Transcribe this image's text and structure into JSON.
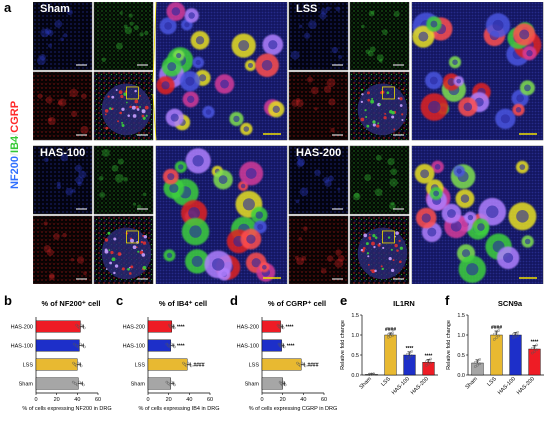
{
  "panel_a": {
    "letter": "a",
    "stain_label_parts": [
      {
        "text": "NF200",
        "color": "#2f6fff"
      },
      {
        "text": "/",
        "color": "#e8e8e8"
      },
      {
        "text": "IB4",
        "color": "#33c833"
      },
      {
        "text": "/",
        "color": "#e8e8e8"
      },
      {
        "text": "CGRP",
        "color": "#ff2a2a"
      }
    ],
    "groups": [
      {
        "title": "Sham"
      },
      {
        "title": "LSS"
      },
      {
        "title": "HAS-100"
      },
      {
        "title": "HAS-200"
      }
    ]
  },
  "chart_data": [
    {
      "letter": "b",
      "type": "bar",
      "orientation": "horizontal",
      "title": "% of NF200⁺ cell",
      "xlabel": "% of cells expressing NF200 in DRG",
      "categories": [
        "HAS-200",
        "HAS-100",
        "LSS",
        "Sham"
      ],
      "values": [
        43,
        42,
        40,
        41
      ],
      "errors": [
        3,
        4,
        3,
        4
      ],
      "colors": [
        "#ee1c25",
        "#1d2fc9",
        "#e8b931",
        "#a6a6a6"
      ],
      "significance": [
        "",
        "",
        "",
        ""
      ],
      "xlim": [
        0,
        60
      ],
      "xticks": [
        "0",
        "20",
        "40",
        "60"
      ]
    },
    {
      "letter": "c",
      "type": "bar",
      "orientation": "horizontal",
      "title": "% of IB4⁺ cell",
      "xlabel": "% of cells expressing IB4 in DRG",
      "categories": [
        "HAS-200",
        "HAS-100",
        "LSS",
        "Sham"
      ],
      "values": [
        23,
        22,
        38,
        22
      ],
      "errors": [
        2,
        3,
        3,
        3
      ],
      "colors": [
        "#ee1c25",
        "#1d2fc9",
        "#e8b931",
        "#a6a6a6"
      ],
      "significance": [
        "****",
        "****",
        "####",
        ""
      ],
      "xlim": [
        0,
        60
      ],
      "xticks": [
        "0",
        "20",
        "40",
        "60"
      ]
    },
    {
      "letter": "d",
      "type": "bar",
      "orientation": "horizontal",
      "title": "% of CGRP⁺ cell",
      "xlabel": "% of cells expressing CGRP in DRG",
      "categories": [
        "HAS-200",
        "HAS-100",
        "LSS",
        "Sham"
      ],
      "values": [
        18,
        19,
        38,
        20
      ],
      "errors": [
        2,
        2,
        3,
        2
      ],
      "colors": [
        "#ee1c25",
        "#1d2fc9",
        "#e8b931",
        "#a6a6a6"
      ],
      "significance": [
        "****",
        "****",
        "####",
        ""
      ],
      "xlim": [
        0,
        60
      ],
      "xticks": [
        "0",
        "20",
        "40",
        "60"
      ]
    },
    {
      "letter": "e",
      "type": "bar",
      "orientation": "vertical",
      "title": "IL1RN",
      "ylabel": "Relative fold change",
      "categories": [
        "Sham",
        "LSS",
        "HAS-100",
        "HAS-200"
      ],
      "values": [
        0.02,
        1.0,
        0.5,
        0.32
      ],
      "errors": [
        0.01,
        0.05,
        0.08,
        0.07
      ],
      "colors": [
        "#a6a6a6",
        "#e8b931",
        "#1d2fc9",
        "#ee1c25"
      ],
      "significance": [
        "",
        "####",
        "****",
        "****"
      ],
      "ylim": [
        0,
        1.5
      ],
      "yticks": [
        "0.0",
        "0.5",
        "1.0",
        "1.5"
      ]
    },
    {
      "letter": "f",
      "type": "bar",
      "orientation": "vertical",
      "title": "SCN9a",
      "ylabel": "Relative fold change",
      "categories": [
        "Sham",
        "LSS",
        "HAS-100",
        "HAS-200"
      ],
      "values": [
        0.3,
        1.0,
        1.0,
        0.65
      ],
      "errors": [
        0.08,
        0.1,
        0.06,
        0.09
      ],
      "colors": [
        "#a6a6a6",
        "#e8b931",
        "#1d2fc9",
        "#ee1c25"
      ],
      "significance": [
        "",
        "####",
        "",
        "****"
      ],
      "ylim": [
        0,
        1.5
      ],
      "yticks": [
        "0.0",
        "0.5",
        "1.0",
        "1.5"
      ]
    }
  ]
}
